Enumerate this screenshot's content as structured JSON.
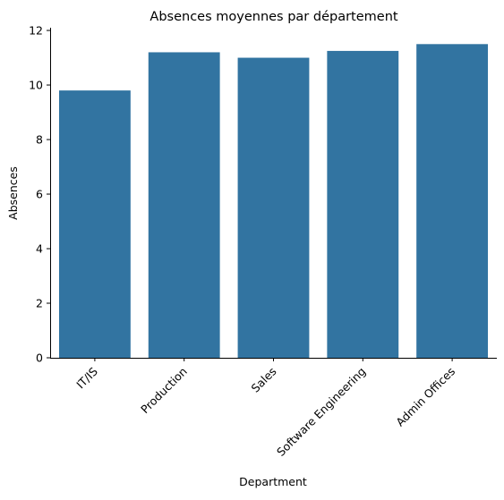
{
  "chart_data": {
    "type": "bar",
    "title": "Absences moyennes par département",
    "xlabel": "Department",
    "ylabel": "Absences",
    "categories": [
      "IT/IS",
      "Production",
      "Sales",
      "Software Engineering",
      "Admin Offices"
    ],
    "values": [
      9.8,
      11.2,
      11.0,
      11.25,
      11.5
    ],
    "ylim": [
      0,
      12.1
    ],
    "yticks": [
      0,
      2,
      4,
      6,
      8,
      10,
      12
    ],
    "bar_color": "#3274a1",
    "grid": false,
    "legend": "none",
    "xtick_rotation": "45-degrees"
  }
}
